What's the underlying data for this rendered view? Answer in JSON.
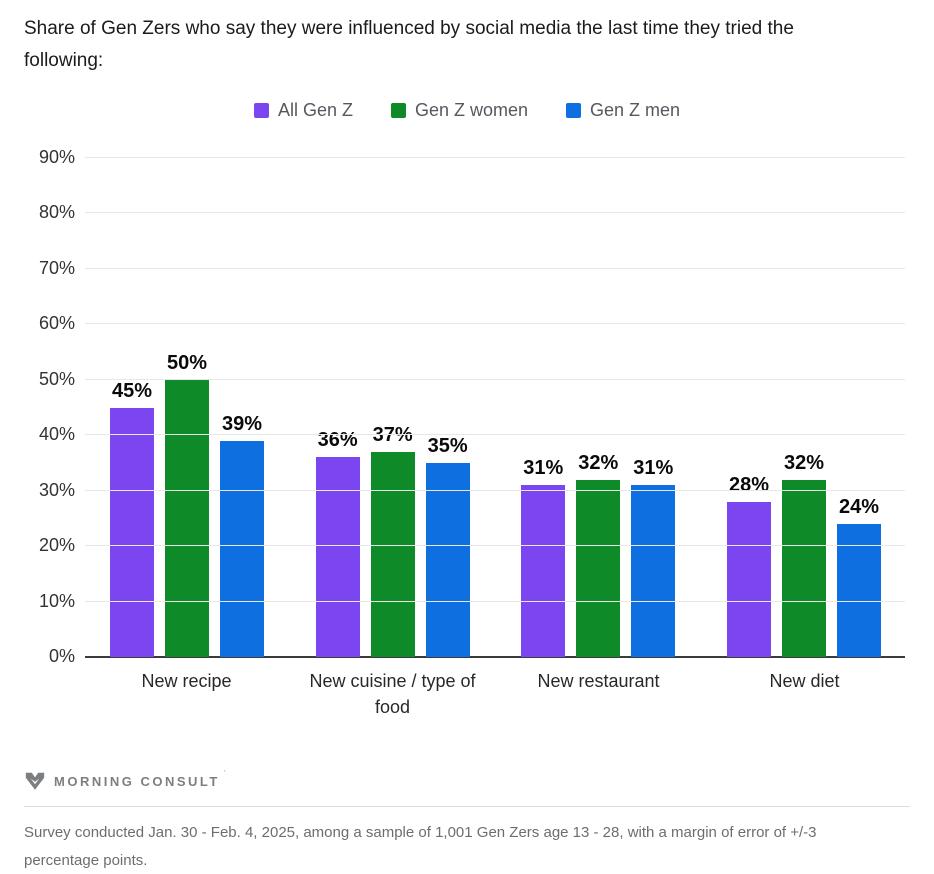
{
  "title": "Share of Gen Zers who say they were influenced by social media the last time they tried the\nfollowing:",
  "chart_data": {
    "type": "bar",
    "title": "Share of Gen Zers who say they were influenced by social media the last time they tried the following:",
    "categories": [
      "New recipe",
      "New cuisine / type of\nfood",
      "New restaurant",
      "New diet"
    ],
    "series": [
      {
        "name": "All Gen Z",
        "color": "#7B46F0",
        "values": [
          45,
          36,
          31,
          28
        ]
      },
      {
        "name": "Gen Z women",
        "color": "#0E8A28",
        "values": [
          50,
          37,
          32,
          32
        ]
      },
      {
        "name": "Gen Z men",
        "color": "#0E6FE0",
        "values": [
          39,
          35,
          31,
          24
        ]
      }
    ],
    "value_suffix": "%",
    "xlabel": "",
    "ylabel": "",
    "ylim": [
      0,
      90
    ],
    "y_tick_step": 10,
    "y_tick_labels": [
      "0%",
      "10%",
      "20%",
      "30%",
      "40%",
      "50%",
      "60%",
      "70%",
      "80%",
      "90%"
    ],
    "grid": true,
    "legend_position": "top",
    "axis_color": "#3b3b3b",
    "grid_color": "#e7e7e7"
  },
  "footer": {
    "logo_text": "MORNING CONSULT",
    "logo_tm": "’",
    "survey_note": "Survey conducted Jan. 30 - Feb. 4, 2025, among a sample of 1,001 Gen Zers age 13 - 28, with a margin of error of +/-3\npercentage points."
  }
}
